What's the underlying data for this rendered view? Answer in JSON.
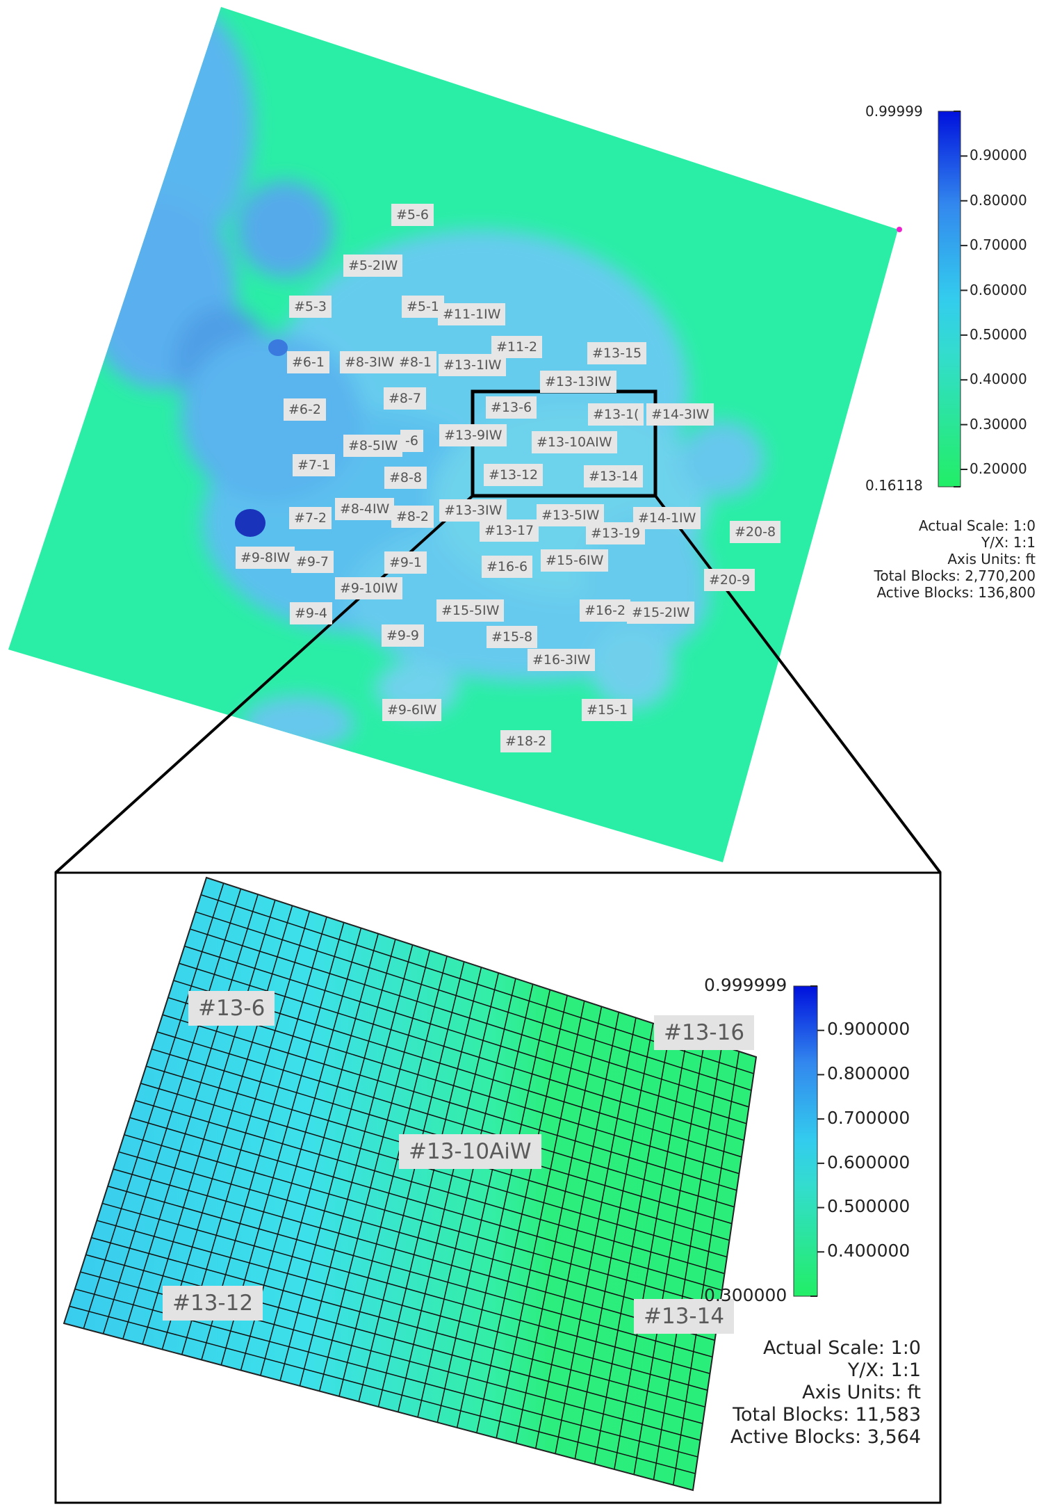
{
  "overview": {
    "well_labels": [
      "#5-6",
      "#5-2IW",
      "#5-3",
      "#5-1",
      "#11-1IW",
      "#6-1",
      "#8-3IW",
      "#8-1",
      "#13-1IW",
      "#11-2",
      "#13-15",
      "#13-13IW",
      "#6-2",
      "#8-7",
      "#13-6",
      "#13-1(",
      "#14-3IW",
      "#8-5IW",
      "-6",
      "#13-9IW",
      "#13-10AIW",
      "#7-1",
      "#13-12",
      "#13-14",
      "#8-8",
      "#7-2",
      "#8-4IW",
      "#8-2",
      "#13-3IW",
      "#13-5IW",
      "#14-1IW",
      "#13-17",
      "#13-19",
      "#20-8",
      "#9-8IW",
      "#9-7",
      "#9-1",
      "#16-6",
      "#15-6IW",
      "#20-9",
      "#9-10IW",
      "#9-4",
      "#15-5IW",
      "#16-2",
      "#15-2IW",
      "#9-9",
      "#15-8",
      "#16-3IW",
      "#9-6IW",
      "#15-1",
      "#18-2"
    ],
    "colorbar": {
      "max_label": "0.99999",
      "min_label": "0.16118",
      "ticks": [
        "0.90000",
        "0.80000",
        "0.70000",
        "0.60000",
        "0.50000",
        "0.40000",
        "0.30000",
        "0.20000"
      ],
      "min": 0.16118,
      "max": 0.99999
    },
    "info": {
      "scale": "Actual Scale: 1:0",
      "yx": "Y/X: 1:1",
      "units": "Axis Units: ft",
      "total": "Total Blocks: 2,770,200",
      "active": "Active Blocks: 136,800"
    }
  },
  "detail": {
    "well_labels": [
      "#13-6",
      "#13-16",
      "#13-10AiW",
      "#13-12",
      "#13-14"
    ],
    "colorbar": {
      "max_label": "0.999999",
      "min_label": "0.300000",
      "ticks": [
        "0.900000",
        "0.800000",
        "0.700000",
        "0.600000",
        "0.500000",
        "0.400000"
      ],
      "min": 0.3,
      "max": 0.999999
    },
    "info": {
      "scale": "Actual Scale: 1:0",
      "yx": "Y/X: 1:1",
      "units": "Axis Units: ft",
      "total": "Total Blocks: 11,583",
      "active": "Active Blocks: 3,564"
    }
  },
  "colors": {
    "low": "#33ee88",
    "mid": "#33ddee",
    "high": "#0022cc"
  }
}
